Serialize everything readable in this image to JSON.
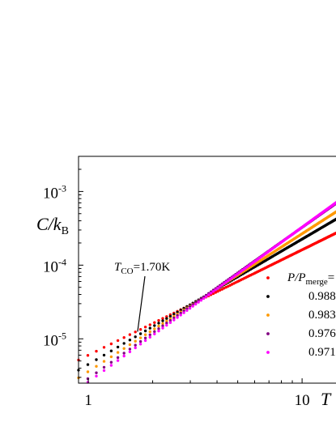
{
  "chart_data": {
    "type": "scatter",
    "xscale": "log",
    "yscale": "log",
    "xlim": [
      0.9,
      16
    ],
    "ylim": [
      2.5e-06,
      0.003
    ],
    "grid": false,
    "legend_position": "right",
    "legend_title_main": "P/P",
    "legend_title_sub": "merge",
    "legend_title_suffix": "=",
    "ylabel_main": "C/k",
    "ylabel_sub": "B",
    "xlabel": "T",
    "xticks": [
      {
        "value": 1,
        "label": "1"
      },
      {
        "value": 10,
        "label": "10"
      }
    ],
    "yticks": [
      {
        "value": 1e-05,
        "base": "10",
        "exp": "-5"
      },
      {
        "value": 0.0001,
        "base": "10",
        "exp": "-4"
      },
      {
        "value": 0.001,
        "base": "10",
        "exp": "-3"
      }
    ],
    "annotation": {
      "main": "T",
      "sub": "CO",
      "value": "=1.70K",
      "point": {
        "x": 1.7,
        "y": 1.25e-05
      }
    },
    "series": [
      {
        "name": "",
        "color": "#ff0000",
        "y_at_1": 6e-06,
        "exponent": 1.43
      },
      {
        "name": "0.988",
        "color": "#000000",
        "y_at_1": 4.5e-06,
        "exponent": 1.7
      },
      {
        "name": "0.983",
        "color": "#ff9900",
        "y_at_1": 3.6e-06,
        "exponent": 1.87
      },
      {
        "name": "0.976",
        "color": "#800080",
        "y_at_1": 2.9e-06,
        "exponent": 2.05
      },
      {
        "name": "0.971",
        "color": "#ff00ff",
        "y_at_1": 2.6e-06,
        "exponent": 2.1
      }
    ]
  }
}
